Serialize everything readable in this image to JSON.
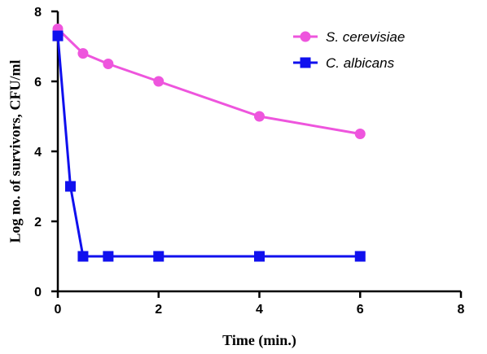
{
  "chart_data": {
    "type": "line",
    "xlabel": "Time (min.)",
    "ylabel": "Log no. of survivors, CFU/ml",
    "xlim": [
      0,
      8
    ],
    "ylim": [
      0,
      8
    ],
    "x_ticks": [
      0,
      2,
      4,
      6,
      8
    ],
    "y_ticks": [
      0,
      2,
      4,
      6,
      8
    ],
    "grid": false,
    "legend_position": "top-right",
    "series": [
      {
        "name": "S. cerevisiae",
        "color": "#EE55DD",
        "marker": "circle",
        "x": [
          0,
          0.5,
          1,
          2,
          4,
          6
        ],
        "y": [
          7.5,
          6.8,
          6.5,
          6.0,
          5.0,
          4.5
        ]
      },
      {
        "name": "C. albicans",
        "color": "#1010EE",
        "marker": "square",
        "x": [
          0,
          0.25,
          0.5,
          1,
          2,
          4,
          6
        ],
        "y": [
          7.3,
          3.0,
          1.0,
          1.0,
          1.0,
          1.0,
          1.0
        ]
      }
    ]
  }
}
